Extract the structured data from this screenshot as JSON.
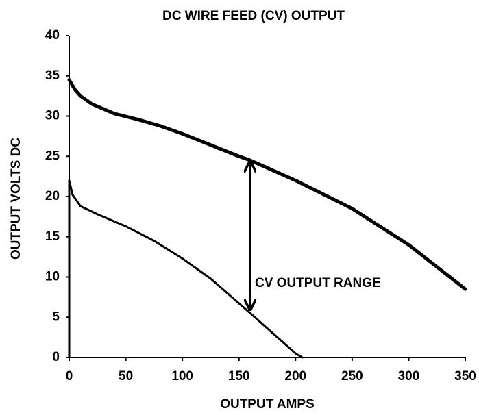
{
  "chart_data": {
    "type": "line",
    "title": "DC WIRE FEED (CV) OUTPUT",
    "xlabel": "OUTPUT AMPS",
    "ylabel": "OUTPUT VOLTS DC",
    "annotation": "CV OUTPUT RANGE",
    "series": [
      {
        "color": "#000000",
        "x": [
          0,
          5,
          10,
          20,
          40,
          60,
          80,
          100,
          150,
          160,
          200,
          250,
          300,
          350
        ],
        "values": [
          34.5,
          33.3,
          32.5,
          31.5,
          30.3,
          29.6,
          28.8,
          27.8,
          25,
          24.5,
          22,
          18.5,
          14,
          8.5
        ]
      },
      {
        "color": "#000000",
        "x": [
          0,
          0,
          3,
          10,
          25,
          50,
          75,
          100,
          125,
          160,
          180,
          200,
          206
        ],
        "values": [
          0,
          22,
          20.2,
          18.8,
          17.8,
          16.3,
          14.5,
          12.3,
          9.8,
          5.5,
          3,
          0.5,
          0
        ]
      }
    ],
    "xlim": [
      0,
      350
    ],
    "xticks": [
      0,
      50,
      100,
      150,
      200,
      250,
      300,
      350
    ],
    "ylim": [
      0,
      40
    ],
    "yticks": [
      0,
      5,
      10,
      15,
      20,
      25,
      30,
      35,
      40
    ],
    "grid": false
  }
}
